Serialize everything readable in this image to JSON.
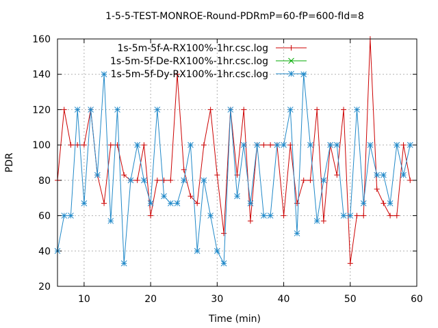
{
  "chart_data": {
    "type": "line",
    "title": "1-5-5-TEST-MONROE-Round-PDRmP=60-fP=600-fId=8",
    "xlabel": "Time (min)",
    "ylabel": "PDR",
    "xlim": [
      6,
      60
    ],
    "ylim": [
      20,
      160
    ],
    "xticks": [
      "10",
      "20",
      "30",
      "40",
      "50",
      "60"
    ],
    "yticks": [
      "20",
      "40",
      "60",
      "80",
      "100",
      "120",
      "140",
      "160"
    ],
    "grid": true,
    "legend_position": "top-left",
    "series": [
      {
        "name": "1s-5m-5f-A-RX100%-1hr.csc.log",
        "color": "#cc0000",
        "marker": "plus",
        "x": [
          6,
          7,
          8,
          9,
          10,
          11,
          12,
          13,
          14,
          15,
          16,
          17,
          18,
          19,
          20,
          21,
          22,
          23,
          24,
          25,
          26,
          27,
          28,
          29,
          30,
          31,
          32,
          33,
          34,
          35,
          36,
          37,
          38,
          39,
          40,
          41,
          42,
          43,
          44,
          45,
          46,
          47,
          48,
          49,
          50,
          51,
          52,
          53,
          54,
          55,
          56,
          57,
          58,
          59
        ],
        "y": [
          80,
          120,
          100,
          100,
          100,
          120,
          83,
          67,
          100,
          100,
          83,
          80,
          80,
          100,
          60,
          80,
          80,
          80,
          140,
          86,
          71,
          67,
          100,
          120,
          83,
          50,
          120,
          83,
          120,
          57,
          100,
          100,
          100,
          100,
          60,
          100,
          67,
          80,
          80,
          120,
          57,
          100,
          83,
          120,
          33,
          60,
          60,
          160,
          75,
          67,
          60,
          60,
          100,
          80
        ]
      },
      {
        "name": "1s-5m-5f-De-RX100%-1hr.csc.log",
        "color": "#00aa00",
        "marker": "cross",
        "x": [],
        "y": []
      },
      {
        "name": "1s-5m-5f-Dy-RX100%-1hr.csc.log",
        "color": "#1f88c8",
        "marker": "star",
        "x": [
          6,
          7,
          8,
          9,
          10,
          11,
          12,
          13,
          14,
          15,
          16,
          17,
          18,
          19,
          20,
          21,
          22,
          23,
          24,
          25,
          26,
          27,
          28,
          29,
          30,
          31,
          32,
          33,
          34,
          35,
          36,
          37,
          38,
          39,
          40,
          41,
          42,
          43,
          44,
          45,
          46,
          47,
          48,
          49,
          50,
          51,
          52,
          53,
          54,
          55,
          56,
          57,
          58,
          59
        ],
        "y": [
          40,
          60,
          60,
          120,
          67,
          120,
          83,
          140,
          57,
          120,
          33,
          80,
          100,
          80,
          67,
          120,
          71,
          67,
          67,
          80,
          100,
          40,
          80,
          60,
          40,
          33,
          120,
          71,
          100,
          67,
          100,
          60,
          60,
          100,
          100,
          120,
          50,
          140,
          100,
          57,
          80,
          100,
          100,
          60,
          60,
          120,
          67,
          100,
          83,
          83,
          67,
          100,
          83,
          100
        ]
      }
    ]
  }
}
